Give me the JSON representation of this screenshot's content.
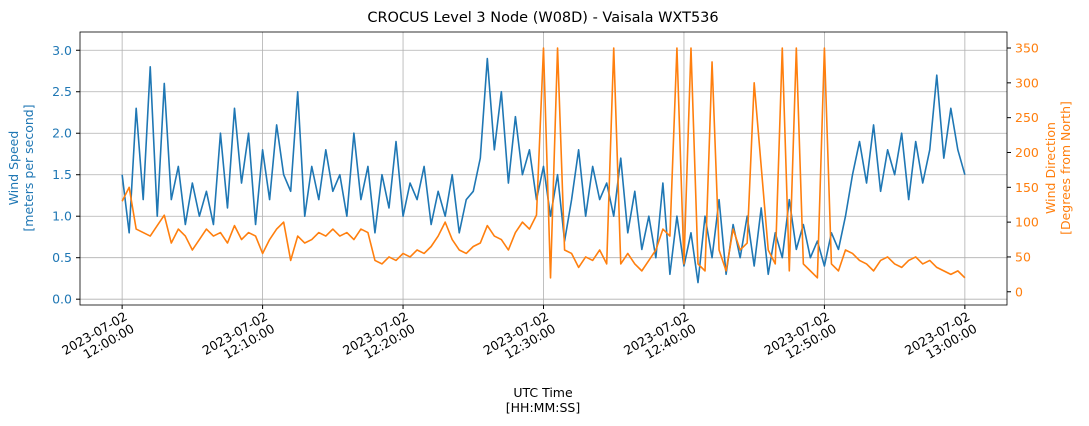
{
  "chart_data": {
    "type": "line",
    "title": "CROCUS Level 3 Node (W08D) - Vaisala WXT536",
    "xlabel": [
      "UTC Time",
      "[HH:MM:SS]"
    ],
    "ylabel": [
      "Wind Speed",
      "[meters per second]"
    ],
    "y2label": [
      "Wind Direction",
      "[Degrees from North]"
    ],
    "grid": true,
    "xlim": [
      "2023-07-02 11:57:00",
      "2023-07-02 13:03:00"
    ],
    "xticks": [
      {
        "value": "2023-07-02 12:00:00",
        "label": [
          "2023-07-02",
          "12:00:00"
        ]
      },
      {
        "value": "2023-07-02 12:10:00",
        "label": [
          "2023-07-02",
          "12:10:00"
        ]
      },
      {
        "value": "2023-07-02 12:20:00",
        "label": [
          "2023-07-02",
          "12:20:00"
        ]
      },
      {
        "value": "2023-07-02 12:30:00",
        "label": [
          "2023-07-02",
          "12:30:00"
        ]
      },
      {
        "value": "2023-07-02 12:40:00",
        "label": [
          "2023-07-02",
          "12:40:00"
        ]
      },
      {
        "value": "2023-07-02 12:50:00",
        "label": [
          "2023-07-02",
          "12:50:00"
        ]
      },
      {
        "value": "2023-07-02 13:00:00",
        "label": [
          "2023-07-02",
          "13:00:00"
        ]
      }
    ],
    "ylim": [
      -0.07,
      3.22
    ],
    "yticks": [
      {
        "value": 0,
        "label": "0.0"
      },
      0.5,
      {
        "value": 1,
        "label": "1.0"
      },
      1.5,
      {
        "value": 2,
        "label": "2.0"
      },
      2.5,
      {
        "value": 3,
        "label": "3.0"
      }
    ],
    "y2lim": [
      -19,
      373
    ],
    "y2ticks": [
      0,
      50,
      100,
      150,
      200,
      250,
      300,
      350
    ],
    "x": [
      "2023-07-02 12:00:00",
      "2023-07-02 12:00:30",
      "2023-07-02 12:01:00",
      "2023-07-02 12:01:30",
      "2023-07-02 12:02:00",
      "2023-07-02 12:02:30",
      "2023-07-02 12:03:00",
      "2023-07-02 12:03:30",
      "2023-07-02 12:04:00",
      "2023-07-02 12:04:30",
      "2023-07-02 12:05:00",
      "2023-07-02 12:05:30",
      "2023-07-02 12:06:00",
      "2023-07-02 12:06:30",
      "2023-07-02 12:07:00",
      "2023-07-02 12:07:30",
      "2023-07-02 12:08:00",
      "2023-07-02 12:08:30",
      "2023-07-02 12:09:00",
      "2023-07-02 12:09:30",
      "2023-07-02 12:10:00",
      "2023-07-02 12:10:30",
      "2023-07-02 12:11:00",
      "2023-07-02 12:11:30",
      "2023-07-02 12:12:00",
      "2023-07-02 12:12:30",
      "2023-07-02 12:13:00",
      "2023-07-02 12:13:30",
      "2023-07-02 12:14:00",
      "2023-07-02 12:14:30",
      "2023-07-02 12:15:00",
      "2023-07-02 12:15:30",
      "2023-07-02 12:16:00",
      "2023-07-02 12:16:30",
      "2023-07-02 12:17:00",
      "2023-07-02 12:17:30",
      "2023-07-02 12:18:00",
      "2023-07-02 12:18:30",
      "2023-07-02 12:19:00",
      "2023-07-02 12:19:30",
      "2023-07-02 12:20:00",
      "2023-07-02 12:20:30",
      "2023-07-02 12:21:00",
      "2023-07-02 12:21:30",
      "2023-07-02 12:22:00",
      "2023-07-02 12:22:30",
      "2023-07-02 12:23:00",
      "2023-07-02 12:23:30",
      "2023-07-02 12:24:00",
      "2023-07-02 12:24:30",
      "2023-07-02 12:25:00",
      "2023-07-02 12:25:30",
      "2023-07-02 12:26:00",
      "2023-07-02 12:26:30",
      "2023-07-02 12:27:00",
      "2023-07-02 12:27:30",
      "2023-07-02 12:28:00",
      "2023-07-02 12:28:30",
      "2023-07-02 12:29:00",
      "2023-07-02 12:29:30",
      "2023-07-02 12:30:00",
      "2023-07-02 12:30:30",
      "2023-07-02 12:31:00",
      "2023-07-02 12:31:30",
      "2023-07-02 12:32:00",
      "2023-07-02 12:32:30",
      "2023-07-02 12:33:00",
      "2023-07-02 12:33:30",
      "2023-07-02 12:34:00",
      "2023-07-02 12:34:30",
      "2023-07-02 12:35:00",
      "2023-07-02 12:35:30",
      "2023-07-02 12:36:00",
      "2023-07-02 12:36:30",
      "2023-07-02 12:37:00",
      "2023-07-02 12:37:30",
      "2023-07-02 12:38:00",
      "2023-07-02 12:38:30",
      "2023-07-02 12:39:00",
      "2023-07-02 12:39:30",
      "2023-07-02 12:40:00",
      "2023-07-02 12:40:30",
      "2023-07-02 12:41:00",
      "2023-07-02 12:41:30",
      "2023-07-02 12:42:00",
      "2023-07-02 12:42:30",
      "2023-07-02 12:43:00",
      "2023-07-02 12:43:30",
      "2023-07-02 12:44:00",
      "2023-07-02 12:44:30",
      "2023-07-02 12:45:00",
      "2023-07-02 12:45:30",
      "2023-07-02 12:46:00",
      "2023-07-02 12:46:30",
      "2023-07-02 12:47:00",
      "2023-07-02 12:47:30",
      "2023-07-02 12:48:00",
      "2023-07-02 12:48:30",
      "2023-07-02 12:49:00",
      "2023-07-02 12:49:30",
      "2023-07-02 12:50:00",
      "2023-07-02 12:50:30",
      "2023-07-02 12:51:00",
      "2023-07-02 12:51:30",
      "2023-07-02 12:52:00",
      "2023-07-02 12:52:30",
      "2023-07-02 12:53:00",
      "2023-07-02 12:53:30",
      "2023-07-02 12:54:00",
      "2023-07-02 12:54:30",
      "2023-07-02 12:55:00",
      "2023-07-02 12:55:30",
      "2023-07-02 12:56:00",
      "2023-07-02 12:56:30",
      "2023-07-02 12:57:00",
      "2023-07-02 12:57:30",
      "2023-07-02 12:58:00",
      "2023-07-02 12:58:30",
      "2023-07-02 12:59:00",
      "2023-07-02 12:59:30",
      "2023-07-02 13:00:00"
    ],
    "series": [
      {
        "name": "Wind Speed",
        "color": "#1f77b4",
        "axis": "y",
        "values": [
          1.5,
          0.8,
          2.3,
          1.2,
          2.8,
          1.0,
          2.6,
          1.2,
          1.6,
          0.9,
          1.4,
          1.0,
          1.3,
          0.9,
          2.0,
          1.1,
          2.3,
          1.4,
          2.0,
          0.9,
          1.8,
          1.2,
          2.1,
          1.5,
          1.3,
          2.5,
          1.0,
          1.6,
          1.2,
          1.8,
          1.3,
          1.5,
          1.0,
          2.0,
          1.2,
          1.6,
          0.8,
          1.5,
          1.1,
          1.9,
          1.0,
          1.4,
          1.2,
          1.6,
          0.9,
          1.3,
          1.0,
          1.5,
          0.8,
          1.2,
          1.3,
          1.7,
          2.9,
          1.8,
          2.5,
          1.4,
          2.2,
          1.5,
          1.8,
          1.2,
          1.6,
          1.0,
          1.5,
          0.7,
          1.2,
          1.8,
          1.0,
          1.6,
          1.2,
          1.4,
          1.0,
          1.7,
          0.8,
          1.3,
          0.6,
          1.0,
          0.5,
          1.4,
          0.3,
          1.0,
          0.4,
          0.8,
          0.2,
          1.0,
          0.5,
          1.2,
          0.3,
          0.9,
          0.5,
          1.0,
          0.4,
          1.1,
          0.3,
          0.8,
          0.5,
          1.2,
          0.6,
          0.9,
          0.5,
          0.7,
          0.4,
          0.8,
          0.6,
          1.0,
          1.5,
          1.9,
          1.4,
          2.1,
          1.3,
          1.8,
          1.5,
          2.0,
          1.2,
          1.9,
          1.4,
          1.8,
          2.7,
          1.7,
          2.3,
          1.8,
          1.5
        ]
      },
      {
        "name": "Wind Direction",
        "color": "#ff7f0e",
        "axis": "y2",
        "values": [
          130,
          150,
          90,
          85,
          80,
          95,
          110,
          70,
          90,
          80,
          60,
          75,
          90,
          80,
          85,
          70,
          95,
          75,
          85,
          80,
          55,
          75,
          90,
          100,
          45,
          80,
          70,
          75,
          85,
          80,
          90,
          80,
          85,
          75,
          90,
          85,
          45,
          40,
          50,
          45,
          55,
          50,
          60,
          55,
          65,
          80,
          100,
          75,
          60,
          55,
          65,
          70,
          95,
          80,
          75,
          60,
          85,
          100,
          90,
          110,
          350,
          20,
          350,
          60,
          55,
          35,
          50,
          45,
          60,
          40,
          350,
          40,
          55,
          40,
          30,
          45,
          60,
          90,
          80,
          350,
          40,
          350,
          40,
          30,
          330,
          60,
          30,
          90,
          60,
          70,
          300,
          180,
          60,
          40,
          350,
          30,
          350,
          40,
          30,
          20,
          350,
          40,
          30,
          60,
          55,
          45,
          40,
          30,
          45,
          50,
          40,
          35,
          45,
          50,
          40,
          45,
          35,
          30,
          25,
          30,
          20
        ]
      }
    ]
  }
}
